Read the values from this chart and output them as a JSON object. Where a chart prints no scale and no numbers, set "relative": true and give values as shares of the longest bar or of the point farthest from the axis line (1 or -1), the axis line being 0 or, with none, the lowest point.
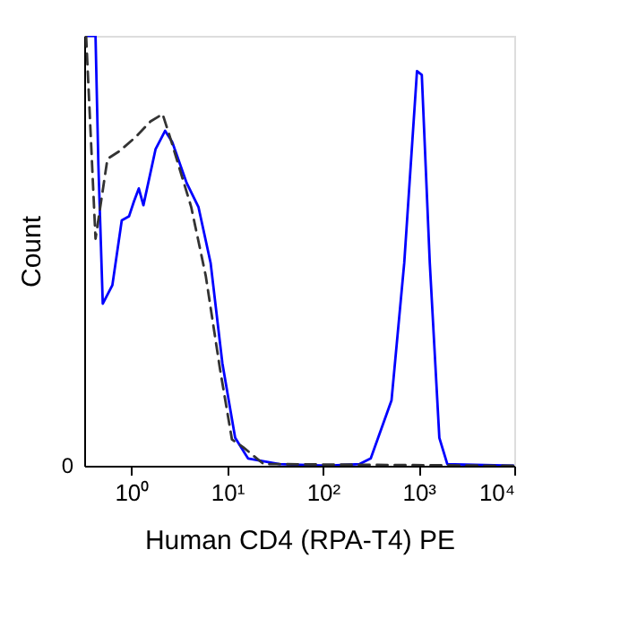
{
  "chart_data": {
    "type": "line",
    "xlabel": "Human CD4 (RPA-T4) PE",
    "ylabel": "Count",
    "relative": true,
    "log": "x",
    "xlim": [
      0.32,
      10000
    ],
    "xticks": [
      {
        "value": 1,
        "label": "10⁰"
      },
      {
        "value": 10,
        "label": "10¹"
      },
      {
        "value": 100,
        "label": "10²"
      },
      {
        "value": 1000,
        "label": "10³"
      },
      {
        "value": 10000,
        "label": "10⁴"
      }
    ],
    "annotations": [
      "0"
    ],
    "grid": false,
    "marker": "none",
    "series": [
      {
        "color": "#0000ff",
        "line_style": "solid",
        "x": [
          0.335,
          0.42,
          0.45,
          0.5,
          0.63,
          0.79,
          0.94,
          1.06,
          1.19,
          1.33,
          1.78,
          2.24,
          2.66,
          3.76,
          5.0,
          6.7,
          8.9,
          12.1,
          16.5,
          35,
          112,
          242,
          316,
          521,
          708,
          962,
          1080,
          1309,
          1648,
          1995,
          9800
        ],
        "values": [
          1.0,
          1.0,
          0.7,
          0.377,
          0.42,
          0.571,
          0.58,
          0.615,
          0.645,
          0.606,
          0.736,
          0.779,
          0.753,
          0.658,
          0.602,
          0.472,
          0.238,
          0.065,
          0.017,
          0.004,
          0.0,
          0.004,
          0.017,
          0.152,
          0.472,
          0.918,
          0.909,
          0.472,
          0.065,
          0.004,
          0.0
        ]
      },
      {
        "color": "#333333",
        "line_style": "dashed",
        "x": [
          0.335,
          0.42,
          0.56,
          0.75,
          1.12,
          1.58,
          2.11,
          2.51,
          4.2,
          5.96,
          8.4,
          11.2,
          14.7,
          24,
          9800
        ],
        "values": [
          1.0,
          0.528,
          0.714,
          0.732,
          0.766,
          0.801,
          0.818,
          0.766,
          0.602,
          0.442,
          0.225,
          0.061,
          0.043,
          0.004,
          0.0
        ]
      }
    ]
  }
}
